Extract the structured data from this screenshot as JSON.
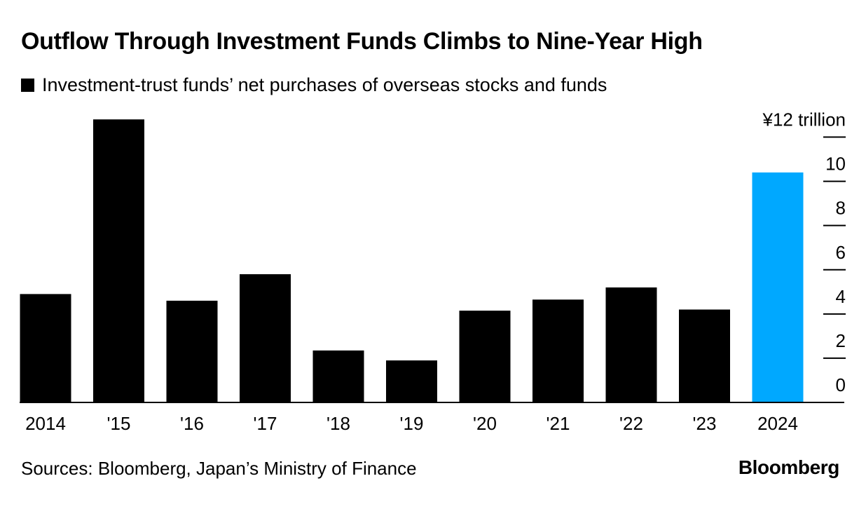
{
  "header": {
    "title": "Outflow Through Investment Funds Climbs to Nine-Year High"
  },
  "footer": {
    "source": "Sources: Bloomberg, Japan’s Ministry of Finance",
    "brand": "Bloomberg"
  },
  "colors": {
    "bar": "#000000",
    "highlight": "#00a8ff",
    "text": "#000000",
    "background": "#ffffff"
  },
  "chart_data": {
    "type": "bar",
    "title": "Outflow Through Investment Funds Climbs to Nine-Year High",
    "categories": [
      "2014",
      "'15",
      "'16",
      "'17",
      "'18",
      "'19",
      "'20",
      "'21",
      "'22",
      "'23",
      "2024"
    ],
    "series": [
      {
        "name": "Investment-trust funds’ net purchases of overseas stocks and funds",
        "values": [
          4.9,
          12.8,
          4.6,
          5.8,
          2.35,
          1.9,
          4.15,
          4.65,
          5.2,
          4.2,
          10.4
        ]
      }
    ],
    "highlight_category": "2024",
    "xlabel": "",
    "ylabel": "¥ trillion",
    "ylim": [
      0,
      12
    ],
    "yticks": [
      0,
      2,
      4,
      6,
      8,
      10,
      12
    ],
    "ytick_labels": [
      "0",
      "2",
      "4",
      "6",
      "8",
      "10",
      "¥12 trillion"
    ],
    "y_axis_side": "right",
    "grid": false,
    "legend": "top-left"
  }
}
